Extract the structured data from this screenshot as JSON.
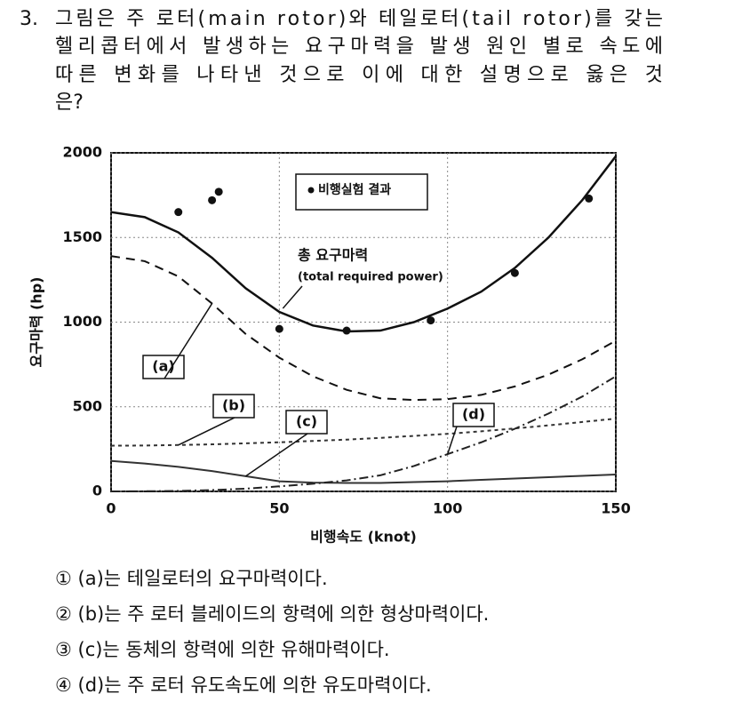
{
  "question": {
    "number": "3.",
    "lines": [
      "그림은 주 로터(main rotor)와 테일로터(tail rotor)를 갖는",
      "헬리콥터에서 발생하는 요구마력을 발생 원인 별로 속도에",
      "따른 변화를 나타낸 것으로 이에 대한 설명으로 옳은 것",
      "은?"
    ]
  },
  "chart_data": {
    "type": "line",
    "xlabel": "비행속도 (knot)",
    "ylabel": "요구마력 (hp)",
    "xlim": [
      0,
      150
    ],
    "ylim": [
      0,
      2000
    ],
    "xticks": [
      0,
      50,
      100,
      150
    ],
    "yticks": [
      0,
      500,
      1000,
      1500,
      2000
    ],
    "grid": true,
    "x": [
      0,
      10,
      20,
      30,
      40,
      50,
      60,
      70,
      80,
      90,
      100,
      110,
      120,
      130,
      140,
      150
    ],
    "series": [
      {
        "name": "총 요구마력",
        "annotation": "(total required power)",
        "color": "#111",
        "style": "solid",
        "values": [
          1650,
          1620,
          1530,
          1380,
          1200,
          1060,
          980,
          945,
          950,
          1000,
          1080,
          1180,
          1320,
          1500,
          1720,
          1980
        ]
      },
      {
        "name": "(a)",
        "color": "#111",
        "style": "dashed",
        "values": [
          1390,
          1360,
          1270,
          1110,
          930,
          790,
          680,
          600,
          550,
          540,
          545,
          570,
          620,
          690,
          780,
          890
        ]
      },
      {
        "name": "(b)",
        "color": "#333",
        "style": "dotted",
        "values": [
          270,
          271,
          274,
          278,
          284,
          290,
          298,
          306,
          316,
          328,
          340,
          355,
          372,
          390,
          410,
          430
        ]
      },
      {
        "name": "(c)",
        "color": "#333",
        "style": "solid",
        "values": [
          180,
          165,
          145,
          120,
          90,
          60,
          52,
          50,
          50,
          55,
          60,
          68,
          76,
          84,
          92,
          100
        ]
      },
      {
        "name": "(d)",
        "color": "#222",
        "style": "dashdot",
        "values": [
          0,
          1,
          3,
          8,
          16,
          30,
          45,
          65,
          95,
          150,
          220,
          290,
          370,
          460,
          560,
          680
        ]
      }
    ],
    "points": {
      "name": "비행실험 결과",
      "color": "#111",
      "x": [
        20,
        30,
        32,
        50,
        70,
        95,
        120,
        142
      ],
      "y": [
        1650,
        1720,
        1770,
        960,
        950,
        1010,
        1290,
        1730
      ]
    }
  },
  "choices": [
    "① (a)는 테일로터의 요구마력이다.",
    "② (b)는 주 로터 블레이드의 항력에 의한 형상마력이다.",
    "③ (c)는 동체의 항력에 의한 유해마력이다.",
    "④ (d)는 주 로터 유도속도에 의한 유도마력이다."
  ]
}
